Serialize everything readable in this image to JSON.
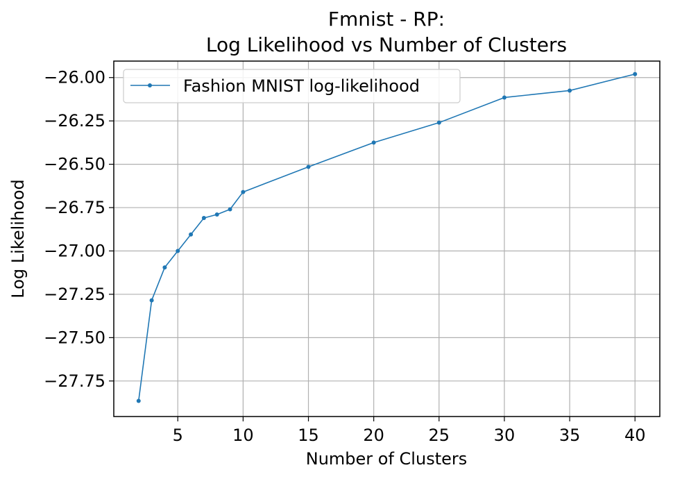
{
  "chart_data": {
    "type": "line",
    "title_line1": "Fmnist - RP:",
    "title_line2": "Log Likelihood vs Number of Clusters",
    "xlabel": "Number of Clusters",
    "ylabel": "Log Likelihood",
    "xlim": [
      0.1,
      41.9
    ],
    "ylim": [
      -27.955,
      -25.905
    ],
    "xticks": [
      5,
      10,
      15,
      20,
      25,
      30,
      35,
      40
    ],
    "xtick_labels": [
      "5",
      "10",
      "15",
      "20",
      "25",
      "30",
      "35",
      "40"
    ],
    "yticks": [
      -26.0,
      -26.25,
      -26.5,
      -26.75,
      -27.0,
      -27.25,
      -27.5,
      -27.75
    ],
    "ytick_labels": [
      "−26.00",
      "−26.25",
      "−26.50",
      "−26.75",
      "−27.00",
      "−27.25",
      "−27.50",
      "−27.75"
    ],
    "grid": true,
    "legend_position": "top-left",
    "series": [
      {
        "name": "Fashion MNIST log-likelihood",
        "color": "#1f77b4",
        "x": [
          2,
          3,
          4,
          5,
          6,
          7,
          8,
          9,
          10,
          15,
          20,
          25,
          30,
          35,
          40
        ],
        "y": [
          -27.865,
          -27.285,
          -27.095,
          -27.0,
          -26.905,
          -26.81,
          -26.79,
          -26.76,
          -26.66,
          -26.515,
          -26.375,
          -26.26,
          -26.115,
          -26.075,
          -25.98
        ]
      }
    ]
  }
}
